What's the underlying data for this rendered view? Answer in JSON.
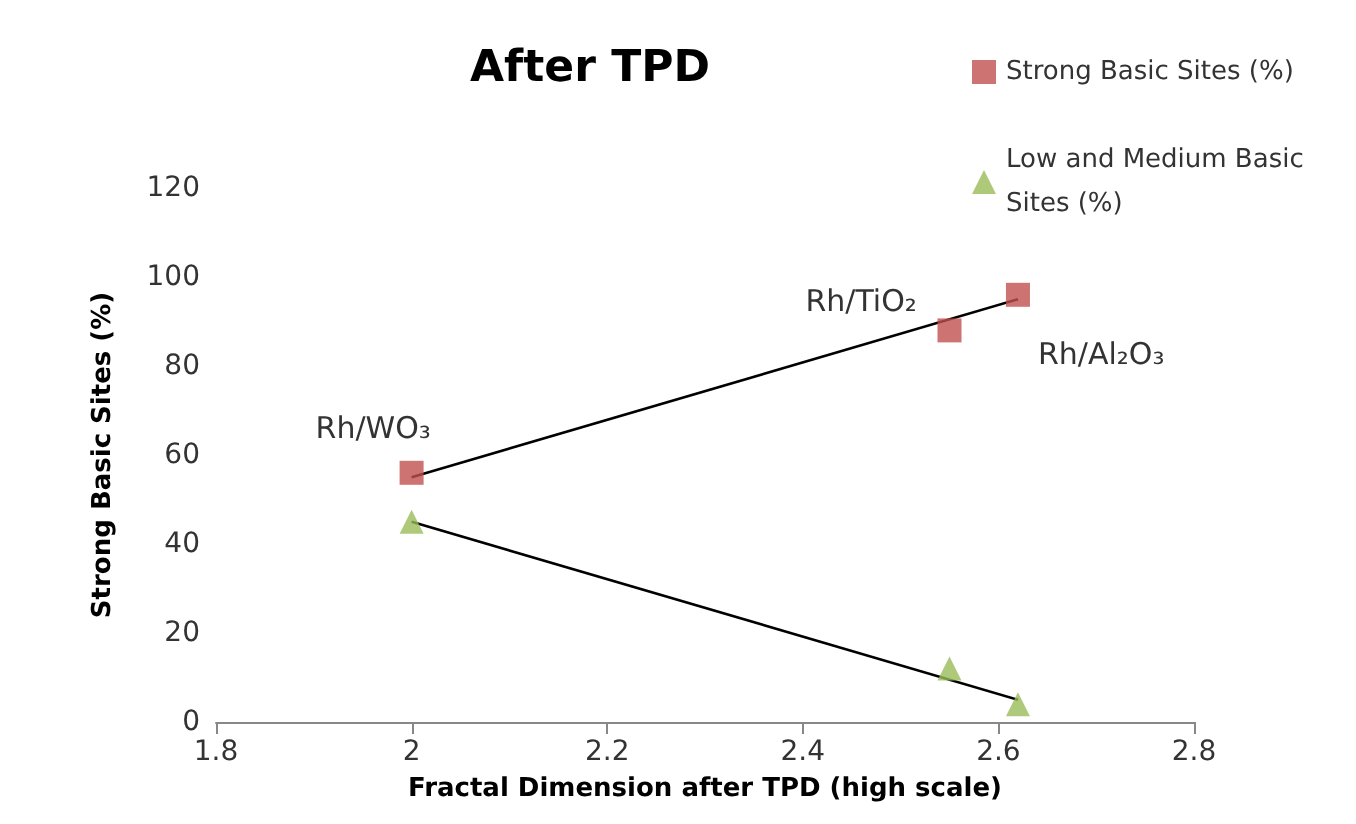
{
  "chart_data": {
    "type": "scatter",
    "title": "After TPD",
    "xlabel": "Fractal Dimension after TPD (high scale)",
    "ylabel": "Strong Basic Sites (%)",
    "series": [
      {
        "name": "Strong Basic Sites (%)",
        "color": "#c0504d",
        "marker": "square",
        "x": [
          2.0,
          2.55,
          2.62
        ],
        "values": [
          56,
          88,
          96
        ]
      },
      {
        "name": "Low and Medium Basic Sites (%)",
        "color": "#9bbb59",
        "marker": "triangle",
        "x": [
          2.0,
          2.55,
          2.62
        ],
        "values": [
          45,
          12,
          4
        ]
      },
      {
        "type": "line",
        "color": "#000000",
        "marker": "none",
        "x": [
          2.0,
          2.62
        ],
        "values": [
          55,
          95
        ]
      },
      {
        "type": "line",
        "color": "#000000",
        "marker": "none",
        "x": [
          2.0,
          2.62
        ],
        "values": [
          45,
          5
        ]
      }
    ],
    "annotations": [
      {
        "text": "Rh/WO₃",
        "x": 2.0,
        "y": 56
      },
      {
        "text": "Rh/TiO₂",
        "x": 2.55,
        "y": 88
      },
      {
        "text": "Rh/Al₂O₃",
        "x": 2.62,
        "y": 96
      }
    ],
    "xlim": [
      1.8,
      2.8
    ],
    "xticks": [
      1.8,
      2,
      2.2,
      2.4,
      2.6,
      2.8
    ],
    "ylim": [
      0,
      120
    ],
    "yticks": [
      0,
      20,
      40,
      60,
      80,
      100,
      120
    ],
    "grid": false,
    "legend": "top right"
  }
}
